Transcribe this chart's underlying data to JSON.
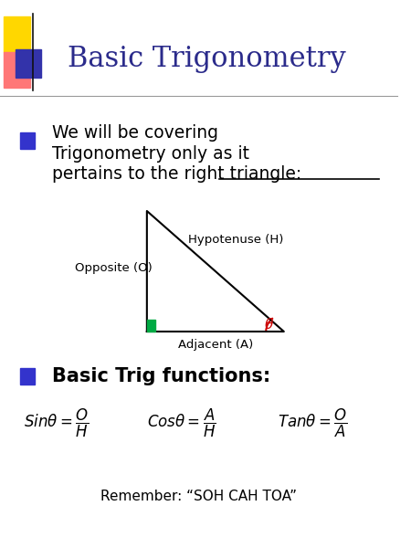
{
  "title": "Basic Trigonometry",
  "title_color": "#2B2B8B",
  "bg_color": "#FFFFFF",
  "bullet_color": "#3333CC",
  "right_angle_color": "#00AA44",
  "theta_color": "#CC0000",
  "hyp_label": "Hypotenuse (H)",
  "opp_label": "Opposite (O)",
  "adj_label": "Adjacent (A)",
  "bullet2_text": "Basic Trig functions:",
  "remember_text": "Remember: “SOH CAH TOA”",
  "header_yellow": "#FFD700",
  "header_red": "#FF7777",
  "header_blue": "#3333AA",
  "header_line_color": "#999999",
  "line1": "We will be covering",
  "line2": "Trigonometry only as it",
  "line3_pre": "pertains to the ",
  "line3_under": "right triangle:"
}
